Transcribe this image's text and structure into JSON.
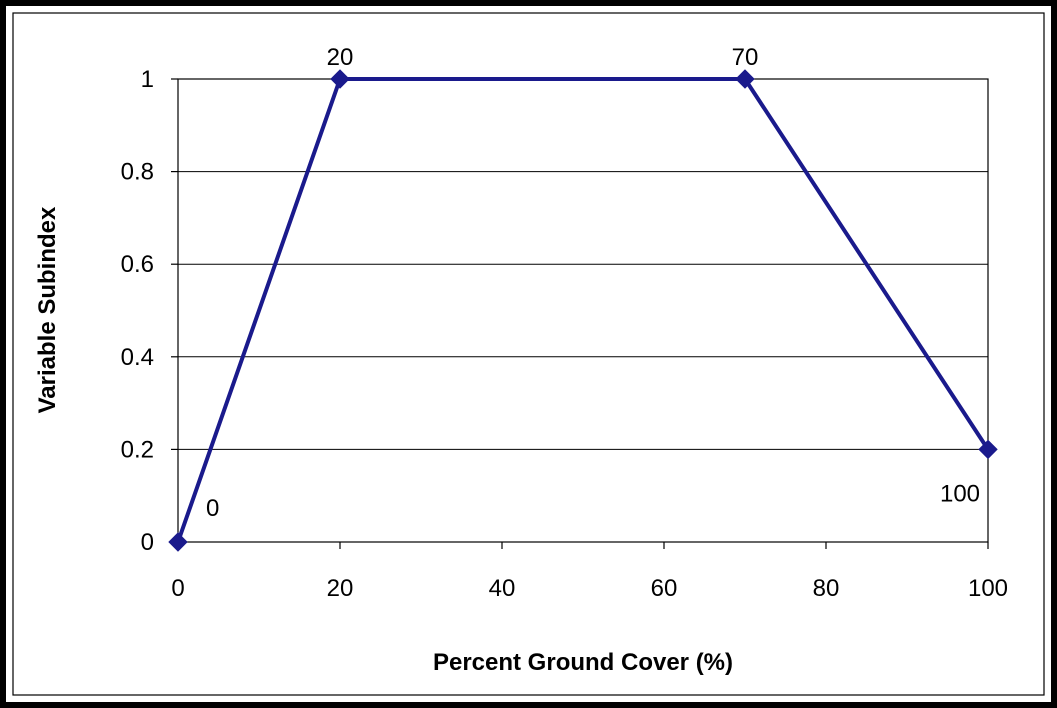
{
  "chart_data": {
    "type": "line",
    "title": "",
    "xlabel": "Percent Ground Cover (%)",
    "ylabel": "Variable Subindex",
    "xlim": [
      0,
      100
    ],
    "ylim": [
      0,
      1
    ],
    "x_ticks": [
      "0",
      "20",
      "40",
      "60",
      "80",
      "100"
    ],
    "y_ticks": [
      "0",
      "0.2",
      "0.4",
      "0.6",
      "0.8",
      "1"
    ],
    "grid": "horizontal major gridlines",
    "legend": "none",
    "series": [
      {
        "x": [
          0,
          20,
          70,
          100
        ],
        "y": [
          0,
          1,
          1,
          0.2
        ],
        "point_labels": [
          "0",
          "20",
          "70",
          "100"
        ],
        "color": "#1a1a8c",
        "marker": "diamond"
      }
    ]
  }
}
